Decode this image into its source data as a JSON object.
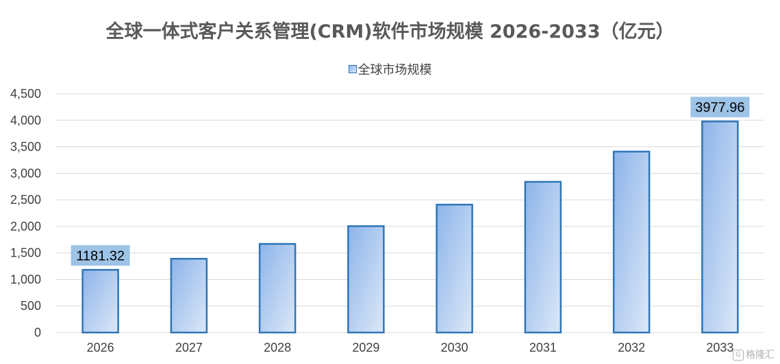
{
  "chart_data": {
    "type": "bar",
    "title": "全球一体式客户关系管理(CRM)软件市场规模 2026-2033（亿元）",
    "categories": [
      "2026",
      "2027",
      "2028",
      "2029",
      "2030",
      "2031",
      "2032",
      "2033"
    ],
    "series": [
      {
        "name": "全球市场规模",
        "values": [
          1181.32,
          1390,
          1670,
          2005,
          2410,
          2840,
          3410,
          3977.96
        ]
      }
    ],
    "data_labels": [
      {
        "category": "2026",
        "text": "1181.32"
      },
      {
        "category": "2033",
        "text": "3977.96"
      }
    ],
    "ylim": [
      0,
      4500
    ],
    "yticks": [
      0,
      500,
      1000,
      1500,
      2000,
      2500,
      3000,
      3500,
      4000,
      4500
    ],
    "ytick_labels": [
      "0",
      "500",
      "1,000",
      "1,500",
      "2,000",
      "2,500",
      "3,000",
      "3,500",
      "4,000",
      "4,500"
    ],
    "xlabel": "",
    "ylabel": "",
    "grid": true,
    "legend_position": "top-center",
    "colors": {
      "bar_border": "#2e75b6",
      "bar_fill_start": "#8db4ea",
      "bar_fill_end": "#dce8f8",
      "label_bg": "#9dc3e6",
      "grid": "#d9d9d9"
    }
  },
  "watermark": {
    "icon": "gelonghui-logo-icon",
    "text": "格隆汇"
  }
}
